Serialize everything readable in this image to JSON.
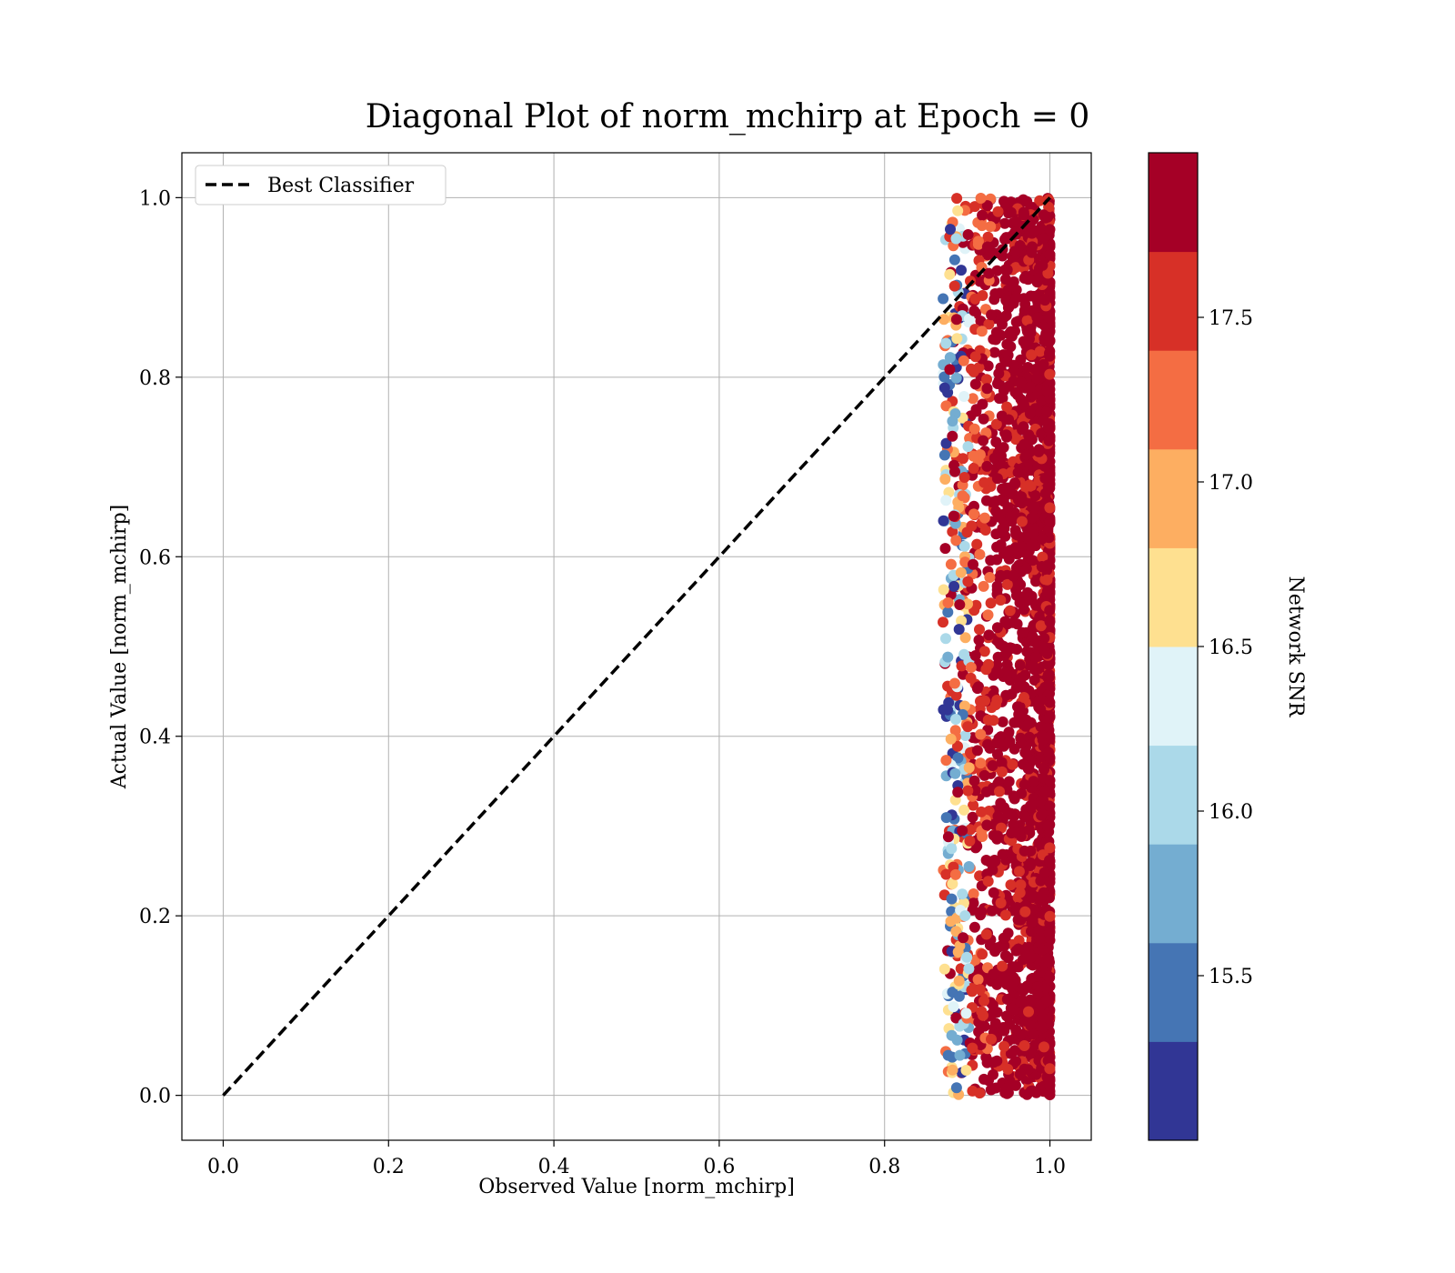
{
  "chart_data": {
    "type": "scatter",
    "title": "Diagonal Plot of norm_mchirp at Epoch = 0",
    "xlabel": "Observed Value [norm_mchirp]",
    "ylabel": "Actual Value [norm_mchirp]",
    "xlim": [
      -0.05,
      1.05
    ],
    "ylim": [
      -0.05,
      1.05
    ],
    "xticks": [
      "0.0",
      "0.2",
      "0.4",
      "0.6",
      "0.8",
      "1.0"
    ],
    "yticks": [
      "0.0",
      "0.2",
      "0.4",
      "0.6",
      "0.8",
      "1.0"
    ],
    "xtick_values": [
      0.0,
      0.2,
      0.4,
      0.6,
      0.8,
      1.0
    ],
    "ytick_values": [
      0.0,
      0.2,
      0.4,
      0.6,
      0.8,
      1.0
    ],
    "grid": true,
    "legend": {
      "position": "top-left",
      "entries": [
        "Best Classifier"
      ]
    },
    "reference_line": {
      "name": "Best Classifier",
      "x": [
        0.0,
        1.0
      ],
      "y": [
        0.0,
        1.0
      ],
      "style": "dashed",
      "color": "#000000"
    },
    "scatter_cluster": {
      "x_range": [
        0.87,
        1.0
      ],
      "y_range": [
        0.0,
        1.0
      ],
      "dominant_color": "#a50026",
      "point_count_shown": 2600
    },
    "colorbar": {
      "label": "Network SNR",
      "range": [
        15.0,
        18.0
      ],
      "ticks": [
        "15.5",
        "16.0",
        "16.5",
        "17.0",
        "17.5"
      ],
      "tick_values": [
        15.5,
        16.0,
        16.5,
        17.0,
        17.5
      ],
      "colors": [
        "#313695",
        "#4575b4",
        "#74add1",
        "#abd9e9",
        "#e0f3f8",
        "#fee090",
        "#fdae61",
        "#f46d43",
        "#d73027",
        "#a50026"
      ]
    }
  }
}
